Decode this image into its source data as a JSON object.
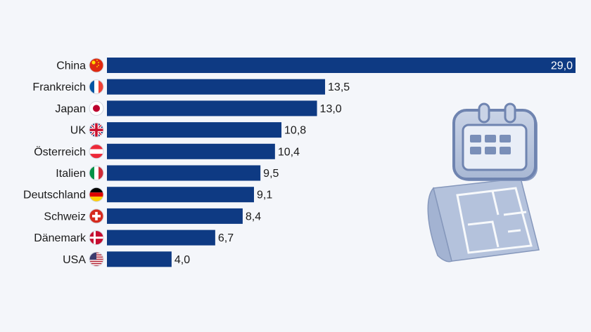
{
  "chart_data": {
    "type": "bar",
    "orientation": "horizontal",
    "categories": [
      "China",
      "Frankreich",
      "Japan",
      "UK",
      "Österreich",
      "Italien",
      "Deutschland",
      "Schweiz",
      "Dänemark",
      "USA"
    ],
    "values": [
      29.0,
      13.5,
      13.0,
      10.8,
      10.4,
      9.5,
      9.1,
      8.4,
      6.7,
      4.0
    ],
    "value_labels": [
      "29,0",
      "13,5",
      "13,0",
      "10,8",
      "10,4",
      "9,5",
      "9,1",
      "8,4",
      "6,7",
      "4,0"
    ],
    "flag_icons": [
      "flag-china-icon",
      "flag-france-icon",
      "flag-japan-icon",
      "flag-uk-icon",
      "flag-austria-icon",
      "flag-italy-icon",
      "flag-germany-icon",
      "flag-switzerland-icon",
      "flag-denmark-icon",
      "flag-usa-icon"
    ],
    "xlim": [
      0,
      29.0
    ],
    "grid": false,
    "bar_color": "#0e3a83",
    "title": "",
    "xlabel": "",
    "ylabel": ""
  },
  "decoration": {
    "icons": [
      "calendar-icon",
      "floor-plan-icon"
    ],
    "icon_color": "#7a8fb8"
  }
}
